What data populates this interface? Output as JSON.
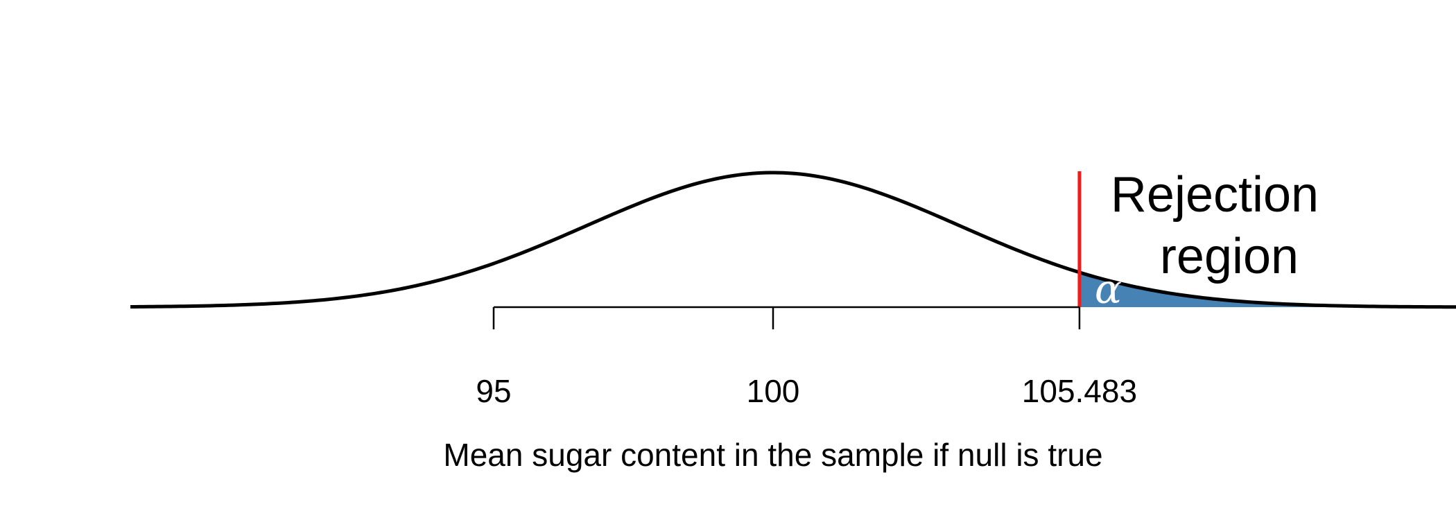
{
  "chart_data": {
    "type": "area",
    "distribution": "normal",
    "mean": 100,
    "sd": 3.333,
    "xlim": [
      88.5,
      120.5
    ],
    "x_ticks": [
      95,
      100,
      105.483
    ],
    "x_tick_labels": [
      "95",
      "100",
      "105.483"
    ],
    "xlabel": "Mean sugar content in the sample if null is true",
    "critical_value": 105.483,
    "rejection_region": {
      "from": 105.483,
      "label_lines": [
        "Rejection",
        "region"
      ],
      "area_symbol": "α"
    },
    "colors": {
      "curve": "#000000",
      "critical_line": "#ee1c1c",
      "rejection_fill": "#4682b4"
    }
  }
}
